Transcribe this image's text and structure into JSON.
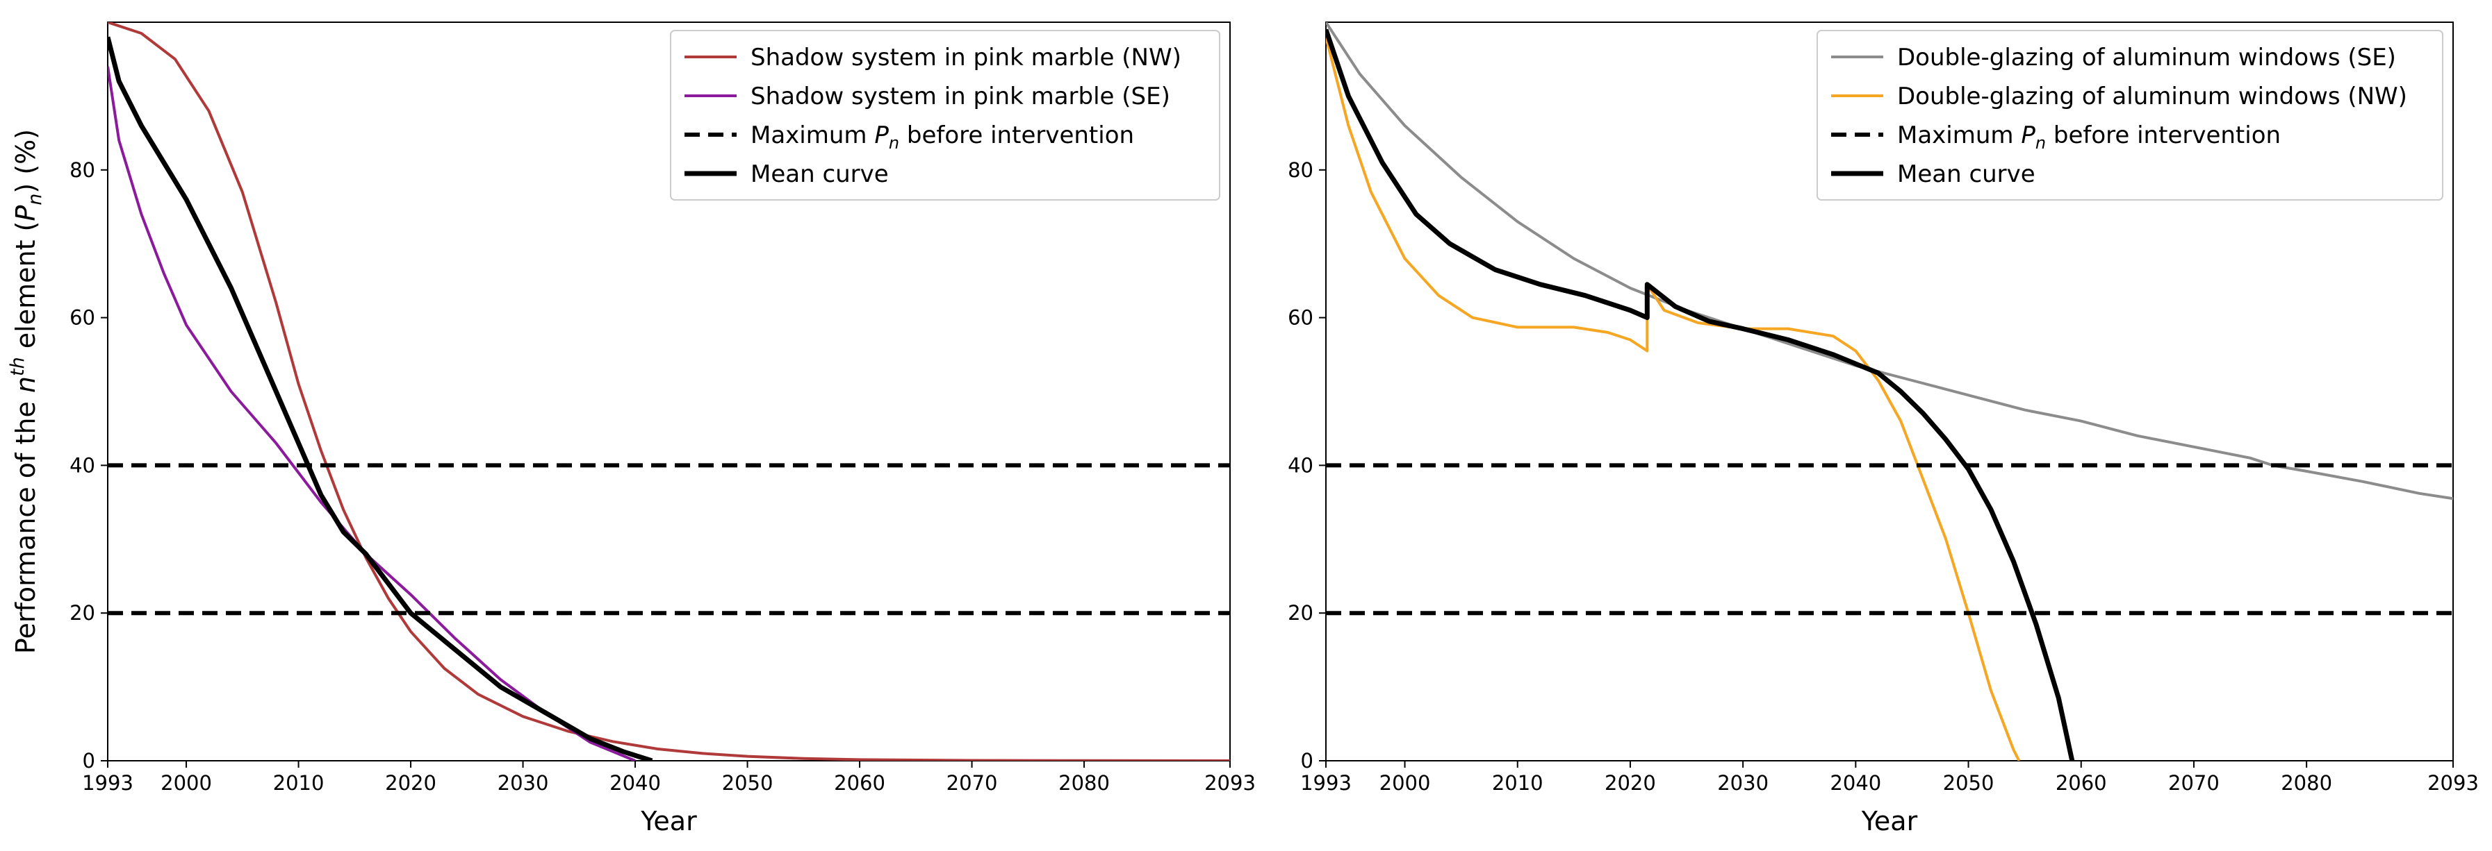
{
  "chart_data": [
    {
      "type": "line",
      "ylabel": "Performance of the n^th element (P_n) (%)",
      "ylabel_parts": [
        "Performance of the ",
        "n",
        "th",
        " element (",
        "P",
        "n",
        ") (%)"
      ],
      "xlabel": "Year",
      "xlim": [
        1993,
        2093
      ],
      "ylim": [
        0,
        100
      ],
      "xticks": [
        1993,
        2000,
        2010,
        2020,
        2030,
        2040,
        2050,
        2060,
        2070,
        2080,
        2093
      ],
      "yticks": [
        0,
        20,
        40,
        60,
        80
      ],
      "legend_position": "top-right",
      "series": [
        {
          "name": "Shadow system in pink marble (NW)",
          "color": "#b03a3a",
          "style": "solid",
          "x": [
            1993,
            1996,
            1999,
            2002,
            2005,
            2008,
            2010,
            2012,
            2014,
            2016,
            2018,
            2020,
            2023,
            2026,
            2030,
            2034,
            2038,
            2042,
            2046,
            2050,
            2055,
            2060,
            2070,
            2080,
            2093
          ],
          "y": [
            100,
            98.5,
            95,
            88,
            77,
            62,
            51,
            42,
            34,
            27.5,
            22,
            17.5,
            12.5,
            9,
            6,
            4,
            2.6,
            1.6,
            1.0,
            0.6,
            0.3,
            0.15,
            0.05,
            0.02,
            0
          ]
        },
        {
          "name": "Shadow system in pink marble (SE)",
          "color": "#8b1a9c",
          "style": "solid",
          "x": [
            1993,
            1994,
            1996,
            1998,
            2000,
            2004,
            2008,
            2012,
            2016,
            2020,
            2024,
            2028,
            2032,
            2036,
            2040
          ],
          "y": [
            94,
            84,
            74,
            66,
            59,
            50,
            43,
            35,
            28,
            22.5,
            16.5,
            11,
            6.5,
            2.5,
            0
          ]
        },
        {
          "name": "Maximum P_n before intervention",
          "label_parts": [
            "Maximum ",
            "P",
            "n",
            " before intervention"
          ],
          "color": "#000000",
          "style": "dashed",
          "levels": [
            40,
            20
          ]
        },
        {
          "name": "Mean curve",
          "color": "#000000",
          "style": "solid-bold",
          "x": [
            1993,
            1994,
            1996,
            2000,
            2004,
            2008,
            2010,
            2012,
            2014,
            2016,
            2018,
            2020,
            2024,
            2028,
            2032,
            2036,
            2039,
            2041.5
          ],
          "y": [
            98,
            92,
            86,
            76,
            64,
            50,
            43,
            36,
            31,
            28,
            24,
            20,
            15,
            10,
            6.5,
            3,
            1.2,
            0
          ]
        }
      ]
    },
    {
      "type": "line",
      "ylabel": "",
      "xlabel": "Year",
      "xlim": [
        1993,
        2093
      ],
      "ylim": [
        0,
        100
      ],
      "xticks": [
        1993,
        2000,
        2010,
        2020,
        2030,
        2040,
        2050,
        2060,
        2070,
        2080,
        2093
      ],
      "yticks": [
        0,
        20,
        40,
        60,
        80
      ],
      "legend_position": "top-right",
      "series": [
        {
          "name": "Double-glazing of aluminum windows (SE)",
          "color": "#8c8c8c",
          "style": "solid",
          "x": [
            1993,
            1996,
            2000,
            2005,
            2010,
            2015,
            2020,
            2025,
            2030,
            2035,
            2040,
            2045,
            2050,
            2055,
            2060,
            2065,
            2070,
            2075,
            2077,
            2080,
            2085,
            2090,
            2093
          ],
          "y": [
            100,
            93,
            86,
            79,
            73,
            68,
            64,
            61,
            58.5,
            56,
            53.5,
            51.5,
            49.5,
            47.5,
            46,
            44,
            42.5,
            41,
            40,
            39.2,
            37.8,
            36.2,
            35.5
          ]
        },
        {
          "name": "Double-glazing of aluminum windows (NW)",
          "color": "#f5a623",
          "style": "solid",
          "x": [
            1993,
            1995,
            1997,
            2000,
            2003,
            2006,
            2010,
            2015,
            2018,
            2020,
            2021.5,
            2021.5,
            2023,
            2026,
            2030,
            2034,
            2038,
            2040,
            2042,
            2044,
            2046,
            2048,
            2050,
            2052,
            2054,
            2054.5
          ],
          "y": [
            98,
            86,
            77,
            68,
            63,
            60,
            58.7,
            58.7,
            58,
            57,
            55.5,
            64.5,
            61,
            59.3,
            58.5,
            58.5,
            57.5,
            55.5,
            51.5,
            46,
            38,
            30,
            20,
            9.5,
            1.5,
            0
          ]
        },
        {
          "name": "Maximum P_n before intervention",
          "label_parts": [
            "Maximum ",
            "P",
            "n",
            " before intervention"
          ],
          "color": "#000000",
          "style": "dashed",
          "levels": [
            40,
            20
          ]
        },
        {
          "name": "Mean curve",
          "color": "#000000",
          "style": "solid-bold",
          "x": [
            1993,
            1995,
            1998,
            2001,
            2004,
            2008,
            2012,
            2016,
            2020,
            2021.5,
            2021.5,
            2024,
            2027,
            2030,
            2034,
            2038,
            2042,
            2044,
            2046,
            2048,
            2050,
            2052,
            2054,
            2056,
            2058,
            2059.2
          ],
          "y": [
            99,
            90,
            81,
            74,
            70,
            66.5,
            64.5,
            63,
            61,
            60,
            64.5,
            61.5,
            59.5,
            58.5,
            57,
            55,
            52.5,
            50,
            47,
            43.5,
            39.5,
            34,
            27,
            18.5,
            8.5,
            0
          ]
        }
      ]
    }
  ]
}
